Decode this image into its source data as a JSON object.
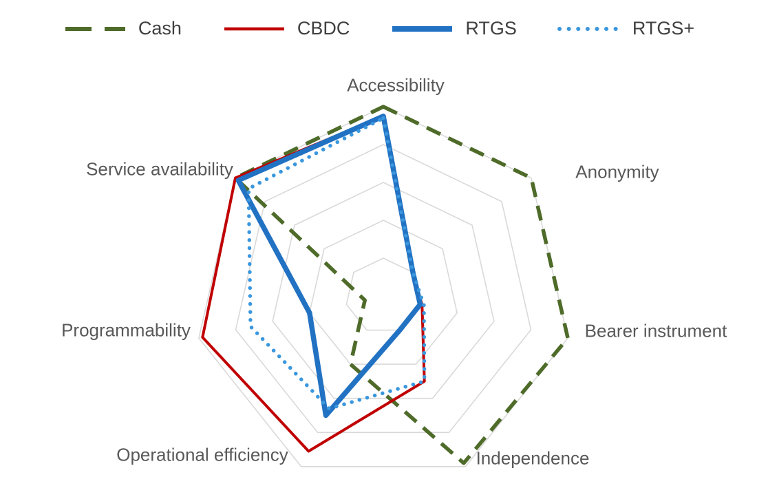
{
  "chart_data": {
    "type": "radar",
    "title": "",
    "axes": [
      "Accessibility",
      "Anonymity",
      "Bearer instrument",
      "Independence",
      "Operational efficiency",
      "Programmability",
      "Service availability"
    ],
    "scale": {
      "min": 0,
      "max": 5,
      "rings": 5
    },
    "grid": true,
    "grid_color": "#d9d9d9",
    "axis_label_color": "#595959",
    "legend_text_color": "#404040",
    "legend_position": "top",
    "series": [
      {
        "name": "Cash",
        "color": "#4e6b29",
        "line_style": "dashed",
        "width": 5.5,
        "values": [
          5,
          5,
          5,
          4.9,
          2,
          0.5,
          5
        ]
      },
      {
        "name": "CBDC",
        "color": "#c00000",
        "line_style": "solid",
        "width": 4,
        "values": [
          4.75,
          1,
          1.05,
          2.5,
          4.55,
          4.9,
          5
        ]
      },
      {
        "name": "RTGS",
        "color": "#2272c3",
        "line_style": "solid",
        "width": 7.5,
        "values": [
          4.75,
          1,
          1,
          1,
          3.5,
          2,
          4.9
        ]
      },
      {
        "name": "RTGS+",
        "color": "#3a97dd",
        "line_style": "dotted",
        "width": 5.5,
        "values": [
          4.7,
          1,
          1.1,
          2.5,
          3.3,
          3.6,
          4.55
        ]
      }
    ]
  }
}
